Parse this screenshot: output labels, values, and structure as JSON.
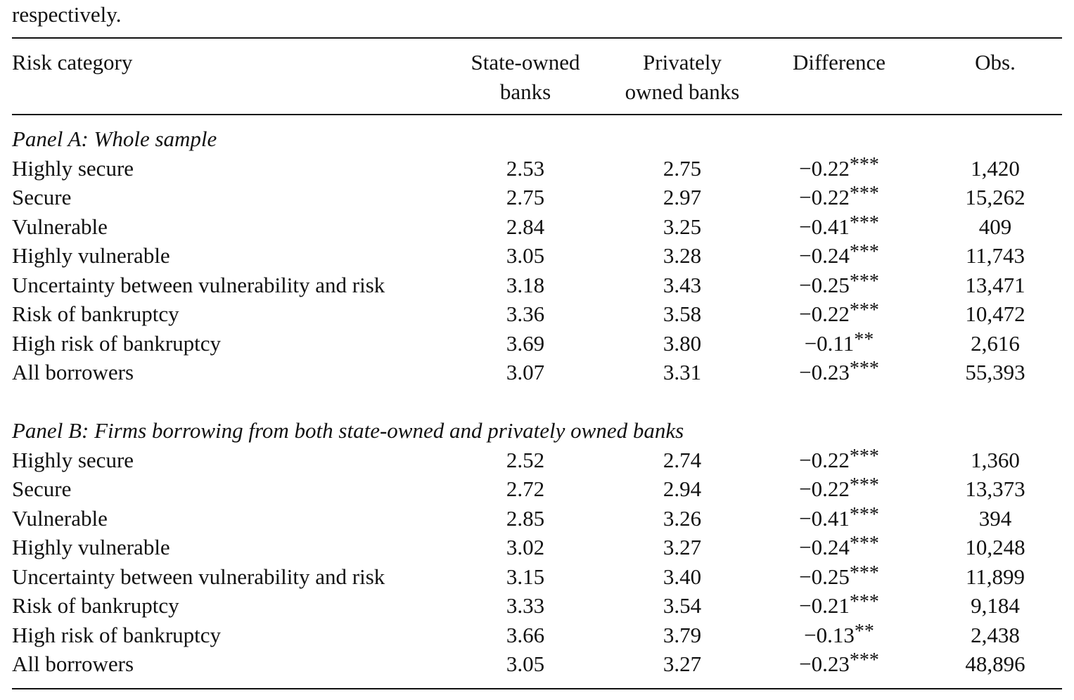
{
  "intro_text": "respectively.",
  "header": {
    "risk_category": "Risk category",
    "state_owned_line1": "State-owned",
    "state_owned_line2": "banks",
    "privately_owned_line1": "Privately",
    "privately_owned_line2": "owned banks",
    "difference": "Difference",
    "obs": "Obs."
  },
  "panels": [
    {
      "title": "Panel A: Whole sample",
      "rows": [
        {
          "category": "Highly secure",
          "state": "2.53",
          "private": "2.75",
          "diff": "−0.22",
          "stars": "***",
          "obs": "1,420"
        },
        {
          "category": "Secure",
          "state": "2.75",
          "private": "2.97",
          "diff": "−0.22",
          "stars": "***",
          "obs": "15,262"
        },
        {
          "category": "Vulnerable",
          "state": "2.84",
          "private": "3.25",
          "diff": "−0.41",
          "stars": "***",
          "obs": "409"
        },
        {
          "category": "Highly vulnerable",
          "state": "3.05",
          "private": "3.28",
          "diff": "−0.24",
          "stars": "***",
          "obs": "11,743"
        },
        {
          "category": "Uncertainty between vulnerability and risk",
          "state": "3.18",
          "private": "3.43",
          "diff": "−0.25",
          "stars": "***",
          "obs": "13,471"
        },
        {
          "category": "Risk of bankruptcy",
          "state": "3.36",
          "private": "3.58",
          "diff": "−0.22",
          "stars": "***",
          "obs": "10,472"
        },
        {
          "category": "High risk of bankruptcy",
          "state": "3.69",
          "private": "3.80",
          "diff": "−0.11",
          "stars": "**",
          "obs": "2,616"
        },
        {
          "category": "All borrowers",
          "state": "3.07",
          "private": "3.31",
          "diff": "−0.23",
          "stars": "***",
          "obs": "55,393"
        }
      ]
    },
    {
      "title": "Panel B: Firms borrowing from both state-owned and privately owned banks",
      "rows": [
        {
          "category": "Highly secure",
          "state": "2.52",
          "private": "2.74",
          "diff": "−0.22",
          "stars": "***",
          "obs": "1,360"
        },
        {
          "category": "Secure",
          "state": "2.72",
          "private": "2.94",
          "diff": "−0.22",
          "stars": "***",
          "obs": "13,373"
        },
        {
          "category": "Vulnerable",
          "state": "2.85",
          "private": "3.26",
          "diff": "−0.41",
          "stars": "***",
          "obs": "394"
        },
        {
          "category": "Highly vulnerable",
          "state": "3.02",
          "private": "3.27",
          "diff": "−0.24",
          "stars": "***",
          "obs": "10,248"
        },
        {
          "category": "Uncertainty between vulnerability and risk",
          "state": "3.15",
          "private": "3.40",
          "diff": "−0.25",
          "stars": "***",
          "obs": "11,899"
        },
        {
          "category": "Risk of bankruptcy",
          "state": "3.33",
          "private": "3.54",
          "diff": "−0.21",
          "stars": "***",
          "obs": "9,184"
        },
        {
          "category": "High risk of bankruptcy",
          "state": "3.66",
          "private": "3.79",
          "diff": "−0.13",
          "stars": "**",
          "obs": "2,438"
        },
        {
          "category": "All borrowers",
          "state": "3.05",
          "private": "3.27",
          "diff": "−0.23",
          "stars": "***",
          "obs": "48,896"
        }
      ]
    }
  ]
}
